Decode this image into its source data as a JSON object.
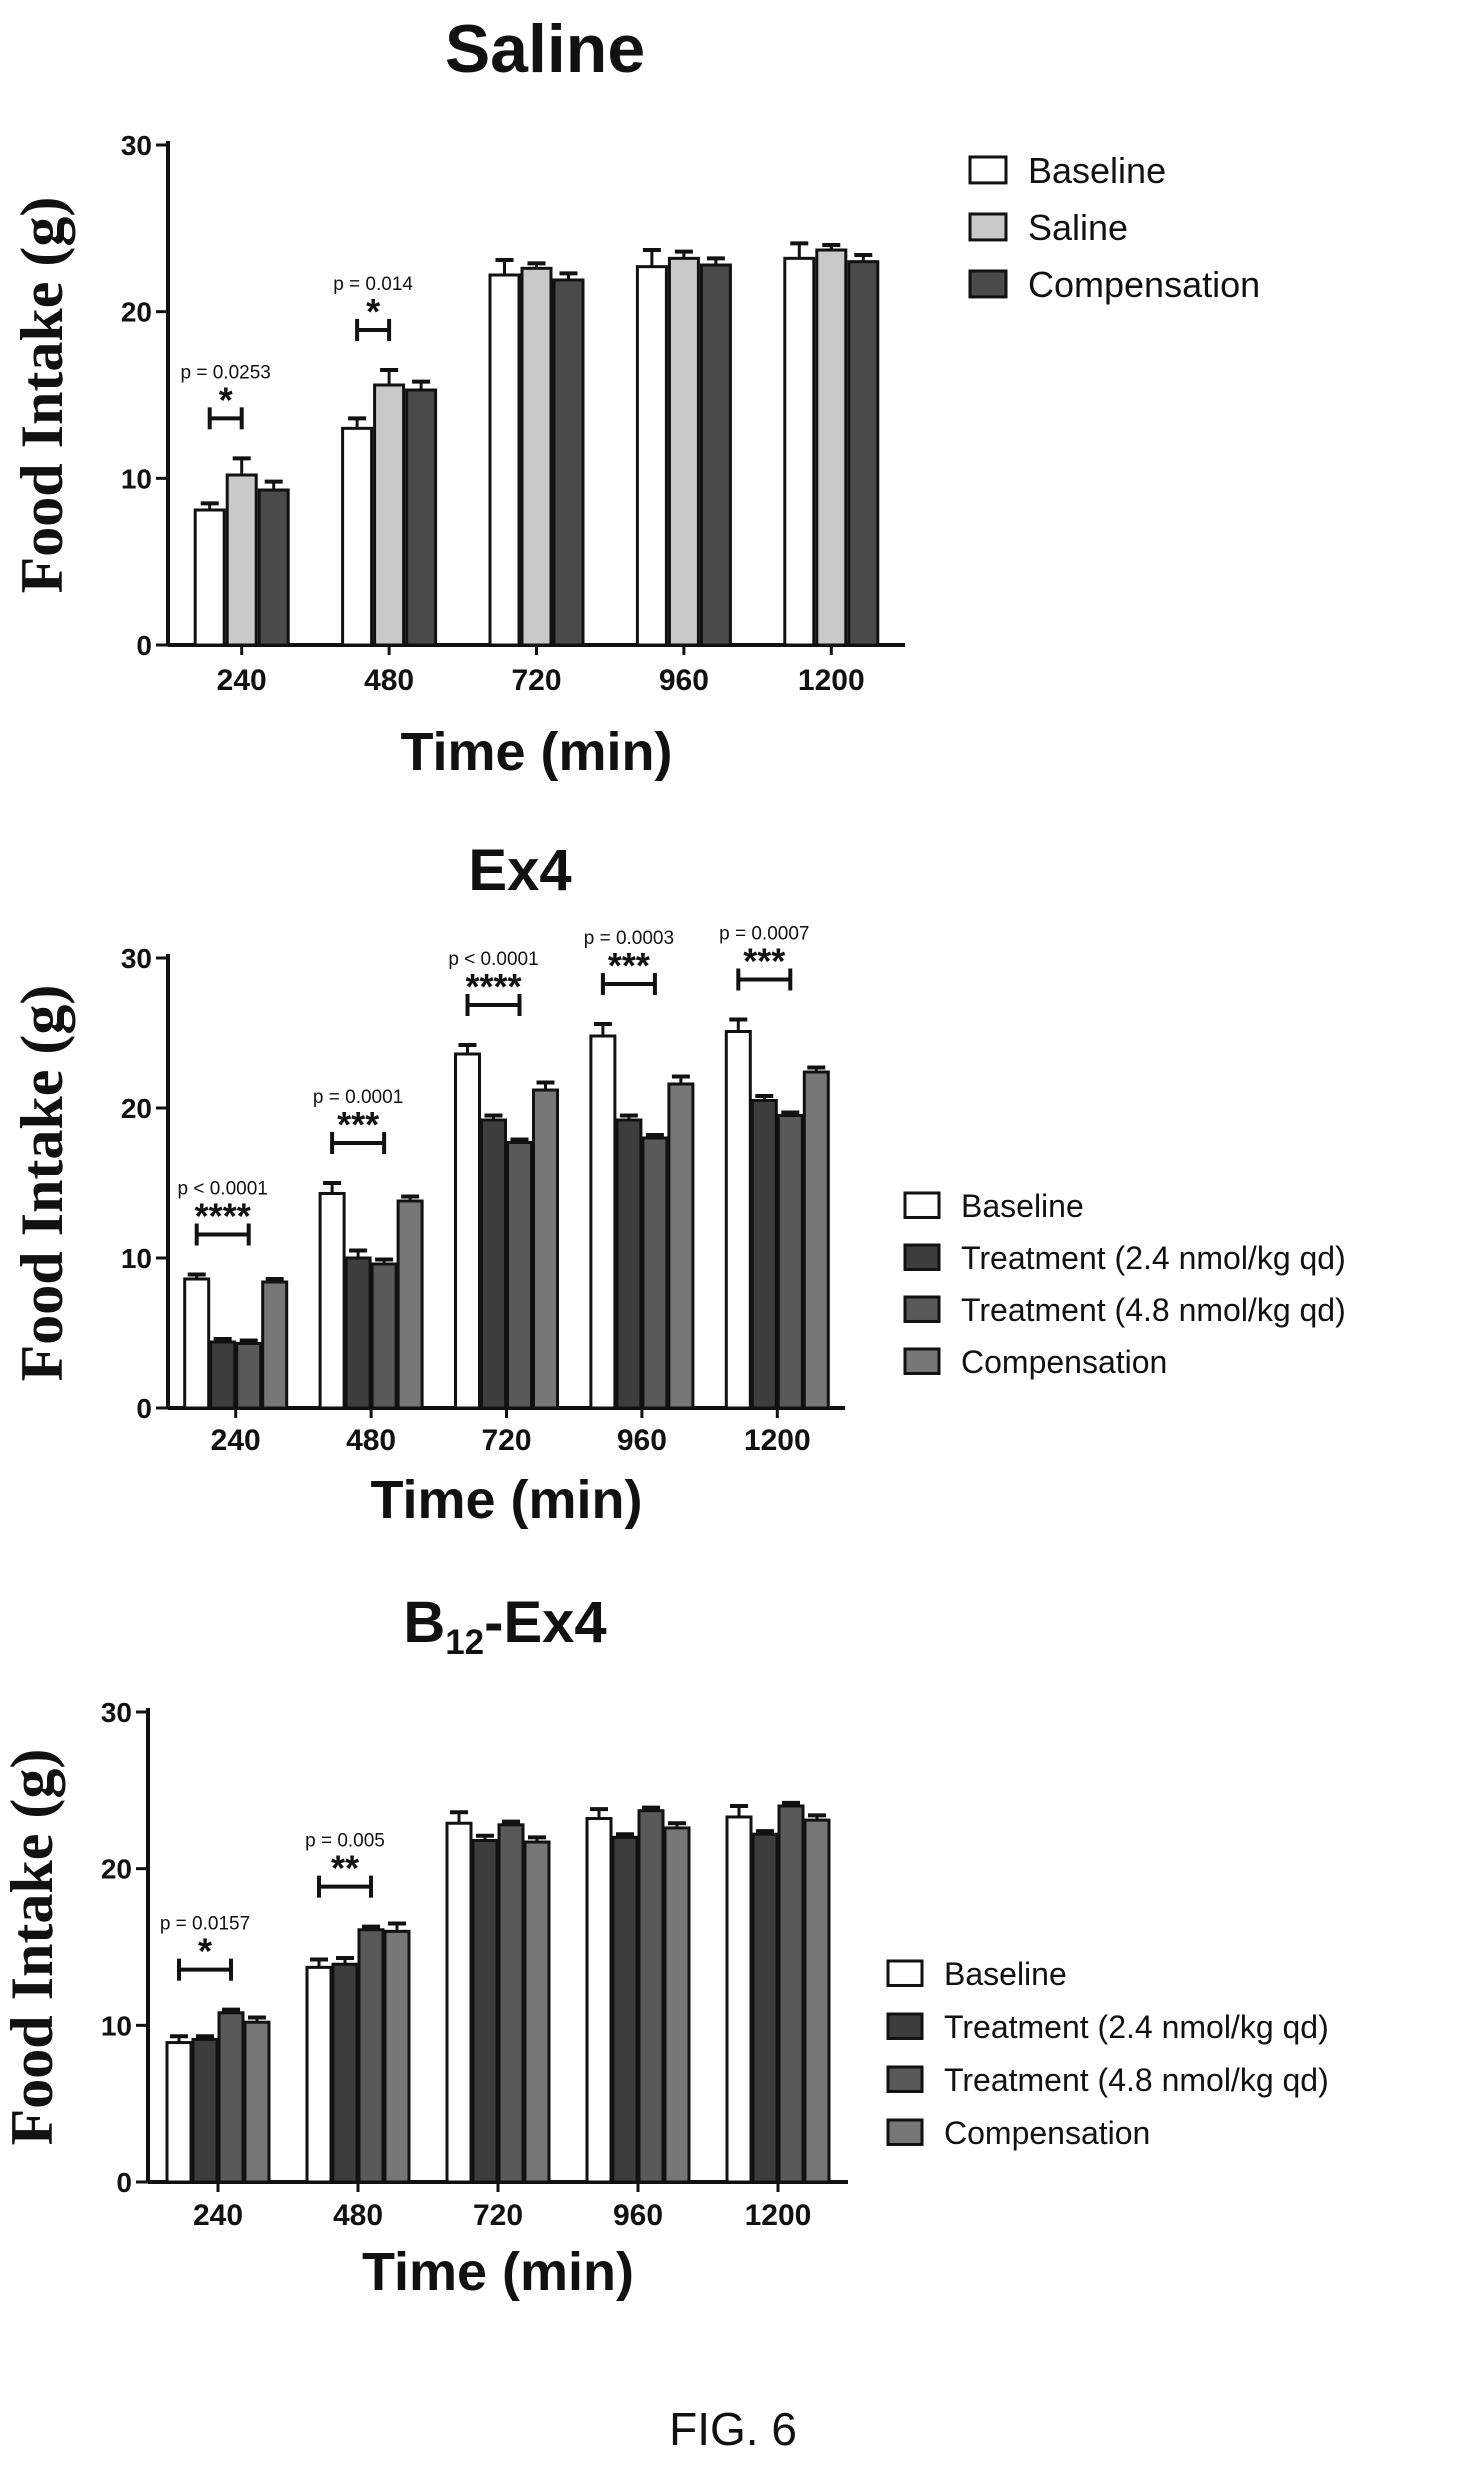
{
  "figure_label": "FIG. 6",
  "chart_data": [
    {
      "type": "bar",
      "title": "Saline",
      "title_sub": "",
      "title_suffix": "",
      "xlabel": "Time (min)",
      "ylabel": "Food Intake (g)",
      "ylim": [
        0,
        30
      ],
      "yticks": [
        0,
        10,
        20,
        30
      ],
      "categories": [
        "240",
        "480",
        "720",
        "960",
        "1200"
      ],
      "legend_position": "top-right",
      "series": [
        {
          "name": "Baseline",
          "color": "#ffffff",
          "values": [
            8.1,
            13.0,
            22.2,
            22.7,
            23.2
          ],
          "errors": [
            0.4,
            0.6,
            0.9,
            1.0,
            0.9
          ]
        },
        {
          "name": "Saline",
          "color": "#c9c9c9",
          "values": [
            10.2,
            15.6,
            22.6,
            23.2,
            23.7
          ],
          "errors": [
            1.0,
            0.9,
            0.3,
            0.4,
            0.3
          ]
        },
        {
          "name": "Compensation",
          "color": "#4a4a4a",
          "values": [
            9.3,
            15.3,
            21.9,
            22.8,
            23.0
          ],
          "errors": [
            0.5,
            0.5,
            0.4,
            0.4,
            0.4
          ]
        }
      ],
      "significance": [
        {
          "category": "240",
          "from_series": 0,
          "to_series": 1,
          "p": "p = 0.0253",
          "stars": "*"
        },
        {
          "category": "480",
          "from_series": 0,
          "to_series": 1,
          "p": "p = 0.014",
          "stars": "*"
        }
      ]
    },
    {
      "type": "bar",
      "title": "Ex4",
      "title_sub": "",
      "title_suffix": "",
      "xlabel": "Time (min)",
      "ylabel": "Food Intake (g)",
      "ylim": [
        0,
        30
      ],
      "yticks": [
        0,
        10,
        20,
        30
      ],
      "categories": [
        "240",
        "480",
        "720",
        "960",
        "1200"
      ],
      "legend_position": "right",
      "series": [
        {
          "name": "Baseline",
          "color": "#ffffff",
          "values": [
            8.6,
            14.3,
            23.6,
            24.8,
            25.1
          ],
          "errors": [
            0.3,
            0.7,
            0.6,
            0.8,
            0.8
          ]
        },
        {
          "name": "Treatment (2.4 nmol/kg qd)",
          "color": "#3d3d3d",
          "values": [
            4.4,
            10.0,
            19.2,
            19.2,
            20.5
          ],
          "errors": [
            0.2,
            0.5,
            0.3,
            0.3,
            0.3
          ]
        },
        {
          "name": "Treatment (4.8 nmol/kg qd)",
          "color": "#595959",
          "values": [
            4.3,
            9.6,
            17.7,
            18.0,
            19.5
          ],
          "errors": [
            0.2,
            0.3,
            0.2,
            0.2,
            0.2
          ]
        },
        {
          "name": "Compensation",
          "color": "#767676",
          "values": [
            8.4,
            13.8,
            21.2,
            21.6,
            22.4
          ],
          "errors": [
            0.2,
            0.3,
            0.5,
            0.5,
            0.3
          ]
        }
      ],
      "significance": [
        {
          "category": "240",
          "from_series": 0,
          "to_series": 2,
          "p": "p < 0.0001",
          "stars": "****"
        },
        {
          "category": "480",
          "from_series": 0,
          "to_series": 2,
          "p": "p = 0.0001",
          "stars": "***"
        },
        {
          "category": "720",
          "from_series": 0,
          "to_series": 2,
          "p": "p < 0.0001",
          "stars": "****"
        },
        {
          "category": "960",
          "from_series": 0,
          "to_series": 2,
          "p": "p = 0.0003",
          "stars": "***"
        },
        {
          "category": "1200",
          "from_series": 0,
          "to_series": 2,
          "p": "p = 0.0007",
          "stars": "***"
        }
      ]
    },
    {
      "type": "bar",
      "title": "B",
      "title_sub": "12",
      "title_suffix": "-Ex4",
      "xlabel": "Time (min)",
      "ylabel": "Food Intake (g)",
      "ylim": [
        0,
        30
      ],
      "yticks": [
        0,
        10,
        20,
        30
      ],
      "categories": [
        "240",
        "480",
        "720",
        "960",
        "1200"
      ],
      "legend_position": "right",
      "series": [
        {
          "name": "Baseline",
          "color": "#ffffff",
          "values": [
            8.9,
            13.7,
            22.9,
            23.2,
            23.3
          ],
          "errors": [
            0.4,
            0.5,
            0.7,
            0.6,
            0.7
          ]
        },
        {
          "name": "Treatment (2.4 nmol/kg qd)",
          "color": "#3d3d3d",
          "values": [
            9.1,
            13.9,
            21.8,
            22.0,
            22.2
          ],
          "errors": [
            0.2,
            0.4,
            0.3,
            0.2,
            0.2
          ]
        },
        {
          "name": "Treatment (4.8 nmol/kg qd)",
          "color": "#595959",
          "values": [
            10.8,
            16.1,
            22.8,
            23.7,
            24.0
          ],
          "errors": [
            0.2,
            0.2,
            0.2,
            0.2,
            0.2
          ]
        },
        {
          "name": "Compensation",
          "color": "#767676",
          "values": [
            10.2,
            16.0,
            21.7,
            22.6,
            23.1
          ],
          "errors": [
            0.3,
            0.5,
            0.3,
            0.3,
            0.3
          ]
        }
      ],
      "significance": [
        {
          "category": "240",
          "from_series": 0,
          "to_series": 2,
          "p": "p = 0.0157",
          "stars": "*"
        },
        {
          "category": "480",
          "from_series": 0,
          "to_series": 2,
          "p": "p = 0.005",
          "stars": "**"
        }
      ]
    }
  ]
}
